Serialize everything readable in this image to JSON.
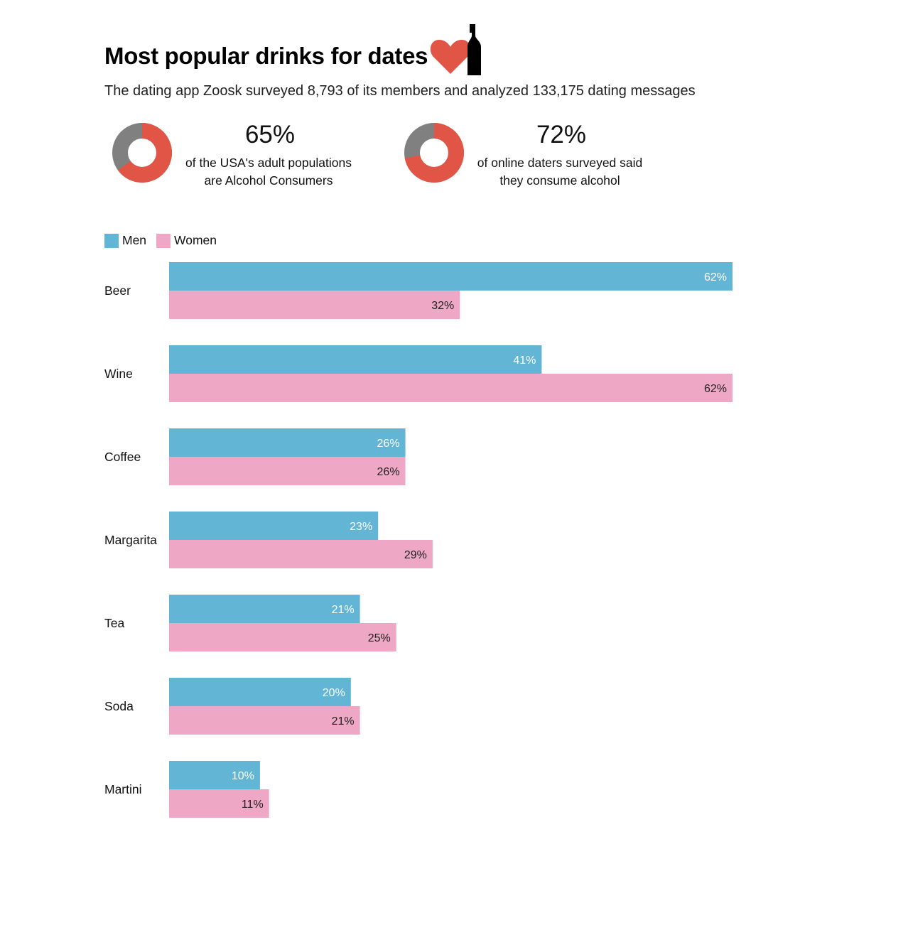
{
  "header": {
    "title": "Most popular drinks for dates",
    "subtitle": "The dating app Zoosk surveyed 8,793 of its members and analyzed 133,175 dating messages",
    "icon": "heart-bottle-icon"
  },
  "stats": [
    {
      "value": "65%",
      "percent": 65,
      "line1": "of the USA's adult populations",
      "line2": "are Alcohol Consumers"
    },
    {
      "value": "72%",
      "percent": 72,
      "line1": "of online daters surveyed said",
      "line2": "they consume alcohol"
    }
  ],
  "colors": {
    "men": "#63b5d6",
    "women": "#eea7c5",
    "donut_fill": "#e05545",
    "donut_rest": "#808080",
    "icon": "#e05545"
  },
  "chart_data": {
    "type": "bar",
    "orientation": "horizontal",
    "categories": [
      "Beer",
      "Wine",
      "Coffee",
      "Margarita",
      "Tea",
      "Soda",
      "Martini"
    ],
    "series": [
      {
        "name": "Men",
        "values": [
          62,
          41,
          26,
          23,
          21,
          20,
          10
        ],
        "labels": [
          "62%",
          "41%",
          "26%",
          "23%",
          "21%",
          "20%",
          "10%"
        ]
      },
      {
        "name": "Women",
        "values": [
          32,
          62,
          26,
          29,
          25,
          21,
          11
        ],
        "labels": [
          "32%",
          "62%",
          "26%",
          "29%",
          "25%",
          "21%",
          "11%"
        ]
      }
    ],
    "xlim": [
      0,
      62
    ],
    "legend": "top-left",
    "grid": false
  }
}
